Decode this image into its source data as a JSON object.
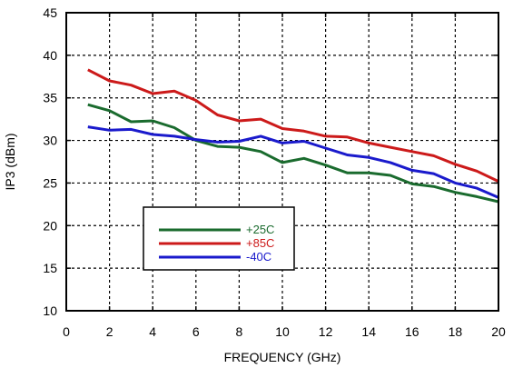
{
  "chart_data": {
    "type": "line",
    "title": "",
    "xlabel": "FREQUENCY (GHz)",
    "ylabel": "IP3 (dBm)",
    "xlim": [
      0,
      20
    ],
    "ylim": [
      10,
      45
    ],
    "x_ticks": [
      0,
      2,
      4,
      6,
      8,
      10,
      12,
      14,
      16,
      18,
      20
    ],
    "y_ticks": [
      10,
      15,
      20,
      25,
      30,
      35,
      40,
      45
    ],
    "grid": true,
    "legend_position": "lower-left",
    "series": [
      {
        "name": "+25C",
        "color": "#1a6b2e",
        "x": [
          1,
          2,
          3,
          4,
          5,
          6,
          7,
          8,
          9,
          10,
          11,
          12,
          13,
          14,
          15,
          16,
          17,
          18,
          19,
          20
        ],
        "y": [
          34.2,
          33.5,
          32.2,
          32.3,
          31.5,
          30.0,
          29.3,
          29.2,
          28.7,
          27.4,
          27.9,
          27.1,
          26.2,
          26.2,
          25.9,
          24.9,
          24.6,
          23.9,
          23.4,
          22.8
        ]
      },
      {
        "name": "+85C",
        "color": "#cc1a1a",
        "x": [
          1,
          2,
          3,
          4,
          5,
          6,
          7,
          8,
          9,
          10,
          11,
          12,
          13,
          14,
          15,
          16,
          17,
          18,
          19,
          20
        ],
        "y": [
          38.3,
          37.0,
          36.5,
          35.5,
          35.8,
          34.7,
          33.0,
          32.3,
          32.5,
          31.4,
          31.1,
          30.5,
          30.4,
          29.7,
          29.2,
          28.7,
          28.2,
          27.2,
          26.4,
          25.2
        ]
      },
      {
        "name": "-40C",
        "color": "#1a1acc",
        "x": [
          1,
          2,
          3,
          4,
          5,
          6,
          7,
          8,
          9,
          10,
          11,
          12,
          13,
          14,
          15,
          16,
          17,
          18,
          19,
          20
        ],
        "y": [
          31.6,
          31.2,
          31.3,
          30.7,
          30.5,
          30.1,
          29.8,
          29.9,
          30.5,
          29.7,
          29.9,
          29.1,
          28.3,
          28.0,
          27.4,
          26.5,
          26.1,
          25.0,
          24.4,
          23.3
        ]
      }
    ]
  }
}
